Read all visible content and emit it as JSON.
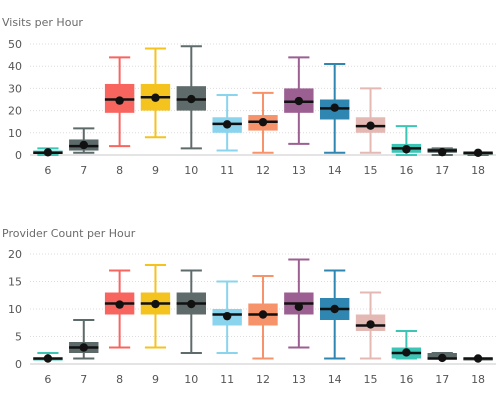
{
  "chart_data": [
    {
      "type": "boxplot",
      "title": "Visits per Hour",
      "xlabel": "",
      "ylabel": "",
      "categories": [
        "6",
        "7",
        "8",
        "9",
        "10",
        "11",
        "12",
        "13",
        "14",
        "15",
        "16",
        "17",
        "18"
      ],
      "ylim": [
        0,
        50
      ],
      "yticks": [
        0,
        10,
        20,
        30,
        40,
        50
      ],
      "grid": true,
      "legend": "none",
      "colors": [
        "#3cc4b4",
        "#5d6a6a",
        "#f8655f",
        "#f4c31e",
        "#5f6b6b",
        "#8ad4ee",
        "#f7936a",
        "#9c5f92",
        "#2f86b0",
        "#e4b9b4",
        "#3cc4b4",
        "#5d6a6a",
        "#5d6a6a"
      ],
      "boxes": [
        {
          "min": 0,
          "q1": 1,
          "median": 1,
          "q3": 2,
          "max": 3,
          "mean": 1.2
        },
        {
          "min": 1,
          "q1": 2,
          "median": 4,
          "q3": 7,
          "max": 12,
          "mean": 4.5
        },
        {
          "min": 4,
          "q1": 19,
          "median": 25,
          "q3": 32,
          "max": 44,
          "mean": 24.5
        },
        {
          "min": 8,
          "q1": 20,
          "median": 26,
          "q3": 32,
          "max": 48,
          "mean": 25.8
        },
        {
          "min": 3,
          "q1": 20,
          "median": 25,
          "q3": 31,
          "max": 49,
          "mean": 25.2
        },
        {
          "min": 2,
          "q1": 10,
          "median": 14,
          "q3": 17,
          "max": 27,
          "mean": 13.8
        },
        {
          "min": 1,
          "q1": 11,
          "median": 15,
          "q3": 18,
          "max": 28,
          "mean": 14.8
        },
        {
          "min": 5,
          "q1": 19,
          "median": 24,
          "q3": 30,
          "max": 44,
          "mean": 24.3
        },
        {
          "min": 1,
          "q1": 16,
          "median": 21,
          "q3": 25,
          "max": 41,
          "mean": 21.3
        },
        {
          "min": 1,
          "q1": 10,
          "median": 13,
          "q3": 17,
          "max": 30,
          "mean": 13.2
        },
        {
          "min": 0,
          "q1": 1,
          "median": 3,
          "q3": 5,
          "max": 13,
          "mean": 2.6
        },
        {
          "min": 0,
          "q1": 1,
          "median": 2,
          "q3": 3,
          "max": 3,
          "mean": 1.3
        },
        {
          "min": 0,
          "q1": 1,
          "median": 1,
          "q3": 1,
          "max": 1,
          "mean": 1.0
        }
      ]
    },
    {
      "type": "boxplot",
      "title": "Provider Count per Hour",
      "xlabel": "",
      "ylabel": "",
      "categories": [
        "6",
        "7",
        "8",
        "9",
        "10",
        "11",
        "12",
        "13",
        "14",
        "15",
        "16",
        "17",
        "18"
      ],
      "ylim": [
        0,
        20
      ],
      "yticks": [
        0,
        5,
        10,
        15,
        20
      ],
      "grid": true,
      "legend": "none",
      "colors": [
        "#3cc4b4",
        "#5d6a6a",
        "#f8655f",
        "#f4c31e",
        "#5f6b6b",
        "#8ad4ee",
        "#f7936a",
        "#9c5f92",
        "#2f86b0",
        "#e4b9b4",
        "#3cc4b4",
        "#5d6a6a",
        "#5d6a6a"
      ],
      "boxes": [
        {
          "min": 1,
          "q1": 1,
          "median": 1,
          "q3": 1,
          "max": 2,
          "mean": 1.0
        },
        {
          "min": 1,
          "q1": 2,
          "median": 3,
          "q3": 4,
          "max": 8,
          "mean": 3.0
        },
        {
          "min": 3,
          "q1": 9,
          "median": 11,
          "q3": 13,
          "max": 17,
          "mean": 10.8
        },
        {
          "min": 3,
          "q1": 9,
          "median": 11,
          "q3": 13,
          "max": 18,
          "mean": 10.9
        },
        {
          "min": 2,
          "q1": 9,
          "median": 11,
          "q3": 13,
          "max": 17,
          "mean": 10.9
        },
        {
          "min": 2,
          "q1": 7,
          "median": 9,
          "q3": 10,
          "max": 15,
          "mean": 8.7
        },
        {
          "min": 1,
          "q1": 7,
          "median": 9,
          "q3": 11,
          "max": 16,
          "mean": 9.0
        },
        {
          "min": 3,
          "q1": 9,
          "median": 11,
          "q3": 13,
          "max": 19,
          "mean": 10.4
        },
        {
          "min": 1,
          "q1": 8,
          "median": 10,
          "q3": 12,
          "max": 17,
          "mean": 10.0
        },
        {
          "min": 1,
          "q1": 6,
          "median": 7,
          "q3": 9,
          "max": 13,
          "mean": 7.2
        },
        {
          "min": 1,
          "q1": 1,
          "median": 2,
          "q3": 3,
          "max": 6,
          "mean": 2.1
        },
        {
          "min": 1,
          "q1": 1,
          "median": 1,
          "q3": 2,
          "max": 2,
          "mean": 1.1
        },
        {
          "min": 1,
          "q1": 1,
          "median": 1,
          "q3": 1,
          "max": 1,
          "mean": 1.0
        }
      ]
    }
  ]
}
